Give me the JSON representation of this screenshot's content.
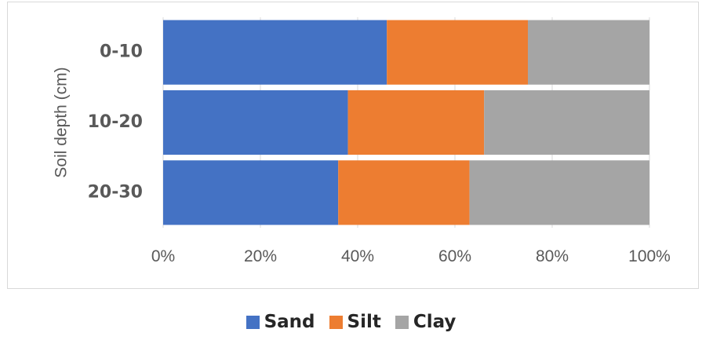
{
  "chart_data": {
    "type": "bar",
    "orientation": "horizontal",
    "stacked": "percent",
    "categories": [
      "0-10",
      "10-20",
      "20-30"
    ],
    "series": [
      {
        "name": "Sand",
        "color": "#4472c4",
        "values": [
          46,
          38,
          36
        ]
      },
      {
        "name": "Silt",
        "color": "#ed7d31",
        "values": [
          29,
          28,
          27
        ]
      },
      {
        "name": "Clay",
        "color": "#a5a5a5",
        "values": [
          25,
          34,
          37
        ]
      }
    ],
    "ylabel": "Soil depth (cm)",
    "xlim": [
      0,
      100
    ],
    "x_ticks": [
      "0%",
      "20%",
      "40%",
      "60%",
      "80%",
      "100%"
    ],
    "grid": "vertical gridlines",
    "legend": "bottom"
  }
}
